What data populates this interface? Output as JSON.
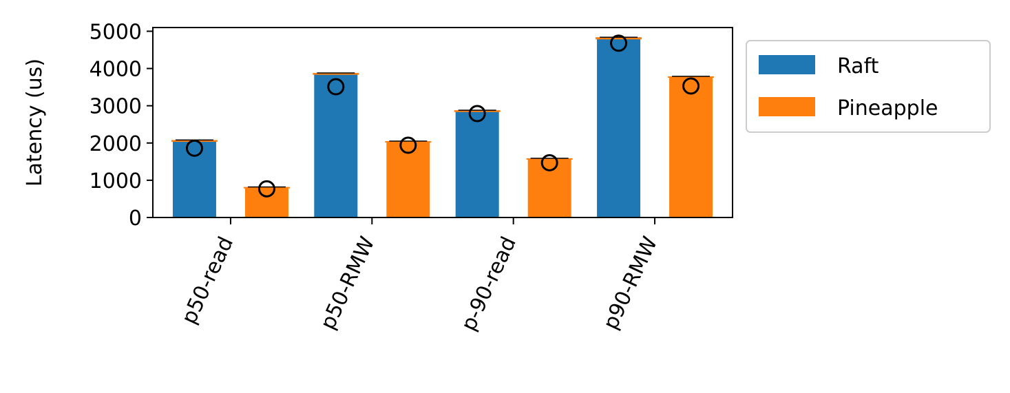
{
  "chart_data": {
    "type": "bar",
    "title": "",
    "xlabel": "",
    "ylabel": "Latency (us)",
    "ylim": [
      0,
      5100
    ],
    "yticks": [
      "0",
      "1000",
      "2000",
      "3000",
      "4000",
      "5000"
    ],
    "categories": [
      "p50-read",
      "p50-RMW",
      "p-90-read",
      "p90-RMW"
    ],
    "series": [
      {
        "name": "Raft",
        "color": "#1f77b4",
        "values": [
          2050,
          3850,
          2850,
          4800
        ],
        "error_top": [
          2080,
          3880,
          2880,
          4840
        ],
        "markers": [
          1860,
          3510,
          2790,
          4680
        ]
      },
      {
        "name": "Pineapple",
        "color": "#ff7f0e",
        "values": [
          800,
          2030,
          1570,
          3770
        ],
        "error_top": [
          820,
          2050,
          1590,
          3790
        ],
        "markers": [
          770,
          1940,
          1470,
          3530
        ]
      }
    ],
    "legend": {
      "position": "outside-right",
      "entries": [
        "Raft",
        "Pineapple"
      ]
    },
    "grid": false,
    "error_color": "#000000",
    "marker_style": "open-circle"
  }
}
